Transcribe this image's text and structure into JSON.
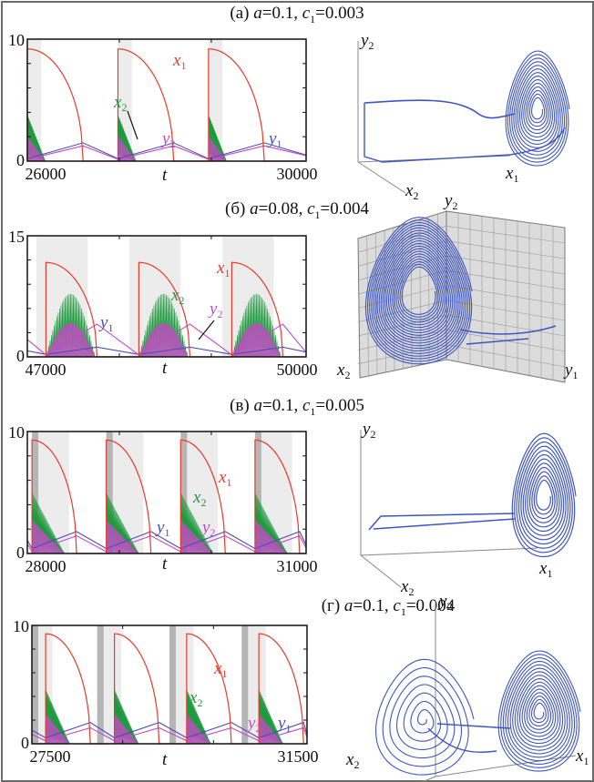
{
  "figure": {
    "panels": [
      {
        "id": "a",
        "title_prefix": "(a)",
        "a": "0.1",
        "c1": "0.003"
      },
      {
        "id": "b",
        "title_prefix": "(б)",
        "a": "0.08",
        "c1": "0.004"
      },
      {
        "id": "v",
        "title_prefix": "(в)",
        "a": "0.1",
        "c1": "0.005"
      },
      {
        "id": "g",
        "title_prefix": "(г)",
        "a": "0.1",
        "c1": "0.004"
      }
    ]
  },
  "colors": {
    "x1": "#e8392a",
    "x2": "#1f9a3e",
    "y1": "#4a4fb3",
    "y2": "#c24bc4",
    "phase": "#3f55c0",
    "shade_light": "#ececec",
    "shade_dark": "#b5b5b5",
    "grid_wall": "#dcdcdc"
  },
  "chart_data": [
    {
      "type": "line",
      "panel": "a",
      "xlabel": "t",
      "ylabel": "",
      "xlim": [
        26000,
        30000
      ],
      "ylim": [
        0,
        10
      ],
      "xticklabels": [
        "26000",
        "30000"
      ],
      "yticklabels": [
        "0",
        "10"
      ],
      "series": [
        {
          "name": "x1",
          "label": "x1",
          "period": 1300,
          "starts": [
            26000,
            27300,
            28600
          ],
          "peak": 9.2,
          "duration": 800
        },
        {
          "name": "x2",
          "label": "x2",
          "peak": 3.8
        },
        {
          "name": "y1",
          "label": "y1",
          "max": 1.5,
          "min": 0.2
        },
        {
          "name": "y2",
          "label": "y2",
          "max": 1.4,
          "min": 0.3
        }
      ],
      "shaded": [
        [
          26000,
          26200
        ],
        [
          27300,
          27500
        ],
        [
          28600,
          28800
        ]
      ],
      "phase_portrait": {
        "axes": [
          "x1",
          "x2",
          "y2"
        ]
      }
    },
    {
      "type": "line",
      "panel": "b",
      "xlabel": "t",
      "ylabel": "",
      "xlim": [
        47000,
        50000
      ],
      "ylim": [
        0,
        15
      ],
      "xticklabels": [
        "47000",
        "50000"
      ],
      "yticklabels": [
        "0",
        "15"
      ],
      "series": [
        {
          "name": "x1",
          "label": "x1",
          "starts": [
            47200,
            48200,
            49200
          ],
          "peak": 11.7,
          "duration": 550
        },
        {
          "name": "x2",
          "label": "x2",
          "peak": 7.8
        },
        {
          "name": "y1",
          "label": "y1",
          "max": 1.2,
          "min": 0.3
        },
        {
          "name": "y2",
          "label": "y2",
          "max": 4.2,
          "min": 0.4
        }
      ],
      "shaded": [
        [
          47100,
          47650
        ],
        [
          48100,
          48650
        ],
        [
          49100,
          49650
        ]
      ],
      "phase_portrait": {
        "axes": [
          "x2",
          "y1",
          "y2"
        ]
      }
    },
    {
      "type": "line",
      "panel": "v",
      "xlabel": "t",
      "ylabel": "",
      "xlim": [
        28000,
        31000
      ],
      "ylim": [
        0,
        10
      ],
      "xticklabels": [
        "28000",
        "31000"
      ],
      "yticklabels": [
        "0",
        "10"
      ],
      "series": [
        {
          "name": "x1",
          "label": "x1",
          "starts": [
            28050,
            28850,
            29650,
            30450
          ],
          "peak": 9.3,
          "duration": 480
        },
        {
          "name": "x2",
          "label": "x2",
          "peak": 5.0
        },
        {
          "name": "y1",
          "label": "y1",
          "max": 1.8,
          "min": 0.4
        },
        {
          "name": "y2",
          "label": "y2",
          "max": 1.6,
          "min": 0.3
        }
      ],
      "shaded": [
        [
          28050,
          28450
        ],
        [
          28850,
          29250
        ],
        [
          29650,
          30050
        ],
        [
          30450,
          30850
        ]
      ],
      "phase_portrait": {
        "axes": [
          "x1",
          "x2",
          "y2"
        ]
      }
    },
    {
      "type": "line",
      "panel": "g",
      "xlabel": "t",
      "ylabel": "",
      "xlim": [
        27500,
        31500
      ],
      "ylim": [
        0,
        10
      ],
      "xticklabels": [
        "27500",
        "31500"
      ],
      "yticklabels": [
        "0",
        "10"
      ],
      "series": [
        {
          "name": "x1",
          "label": "x1",
          "starts": [
            27700,
            28700,
            29750,
            30800
          ],
          "peak": 9.3,
          "duration": 650
        },
        {
          "name": "x2",
          "label": "x2",
          "peak": 4.6
        },
        {
          "name": "y1",
          "label": "y1",
          "max": 1.8,
          "min": 0.5
        },
        {
          "name": "y2",
          "label": "y2",
          "max": 1.5,
          "min": 0.4
        }
      ],
      "shaded": [
        [
          27450,
          27800
        ],
        [
          28450,
          28800
        ],
        [
          29500,
          29850
        ],
        [
          30550,
          30900
        ]
      ],
      "phase_portrait": {
        "axes": [
          "x1",
          "x2",
          "y2"
        ]
      }
    }
  ]
}
